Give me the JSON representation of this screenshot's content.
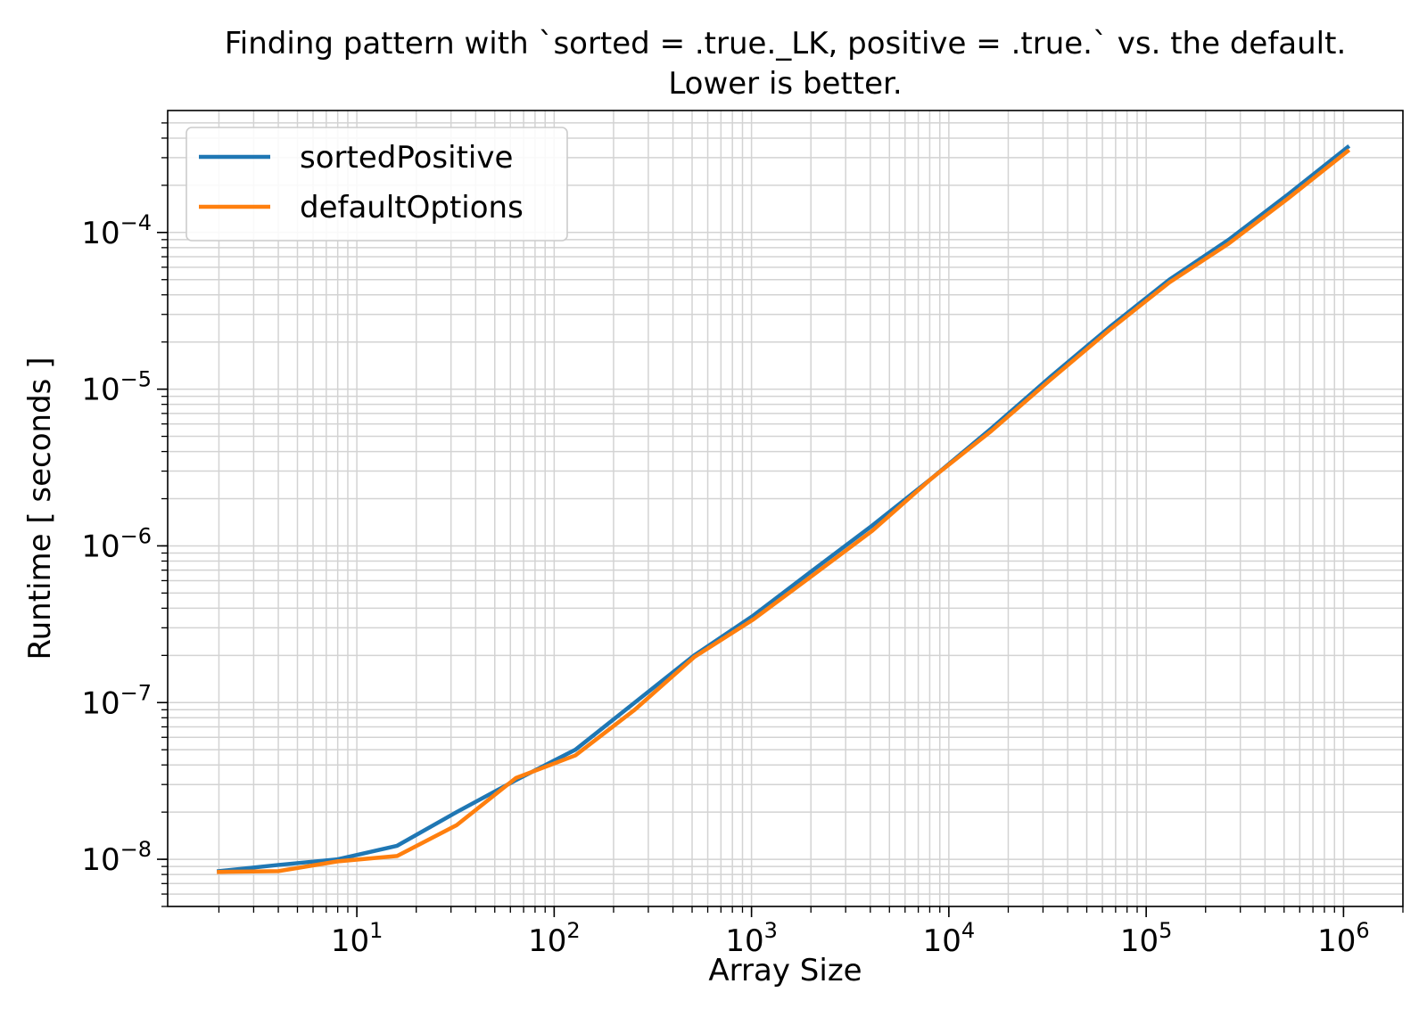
{
  "chart_data": {
    "type": "line",
    "title": [
      "Finding pattern with `sorted = .true._LK, positive = .true.` vs. the default.",
      "Lower is better."
    ],
    "xlabel": "Array Size",
    "ylabel": "Runtime [ seconds ]",
    "x_scale": "log",
    "y_scale": "log",
    "xlim": [
      1.1,
      2000000
    ],
    "ylim": [
      5e-09,
      0.0006
    ],
    "x_ticks": [
      {
        "value": 10,
        "base": "10",
        "exp": "1"
      },
      {
        "value": 100,
        "base": "10",
        "exp": "2"
      },
      {
        "value": 1000,
        "base": "10",
        "exp": "3"
      },
      {
        "value": 10000,
        "base": "10",
        "exp": "4"
      },
      {
        "value": 100000,
        "base": "10",
        "exp": "5"
      },
      {
        "value": 1000000,
        "base": "10",
        "exp": "6"
      }
    ],
    "y_ticks": [
      {
        "value": 1e-08,
        "base": "10",
        "exp": "−8"
      },
      {
        "value": 1e-07,
        "base": "10",
        "exp": "−7"
      },
      {
        "value": 1e-06,
        "base": "10",
        "exp": "−6"
      },
      {
        "value": 1e-05,
        "base": "10",
        "exp": "−5"
      },
      {
        "value": 0.0001,
        "base": "10",
        "exp": "−4"
      }
    ],
    "grid": "major and minor",
    "legend_position": "upper-left",
    "series": [
      {
        "name": "sortedPositive",
        "color": "#1f77b4",
        "x": [
          2,
          4,
          8,
          16,
          32,
          64,
          128,
          256,
          512,
          1024,
          2048,
          4096,
          8192,
          16384,
          32768,
          65536,
          131072,
          262144,
          524288,
          1048576
        ],
        "y": [
          8.4e-09,
          9.2e-09,
          1e-08,
          1.22e-08,
          2e-08,
          3.2e-08,
          5e-08,
          1e-07,
          2e-07,
          3.6e-07,
          7e-07,
          1.35e-06,
          2.7e-06,
          5.6e-06,
          1.2e-05,
          2.5e-05,
          5e-05,
          9e-05,
          0.000175,
          0.00035
        ]
      },
      {
        "name": "defaultOptions",
        "color": "#ff7f0e",
        "x": [
          2,
          4,
          8,
          16,
          32,
          64,
          128,
          256,
          512,
          1024,
          2048,
          4096,
          8192,
          16384,
          32768,
          65536,
          131072,
          262144,
          524288,
          1048576
        ],
        "y": [
          8.3e-09,
          8.4e-09,
          9.7e-09,
          1.05e-08,
          1.65e-08,
          3.3e-08,
          4.6e-08,
          9e-08,
          1.95e-07,
          3.4e-07,
          6.5e-07,
          1.25e-06,
          2.7e-06,
          5.4e-06,
          1.15e-05,
          2.4e-05,
          4.8e-05,
          8.5e-05,
          0.000165,
          0.00033
        ]
      }
    ]
  }
}
